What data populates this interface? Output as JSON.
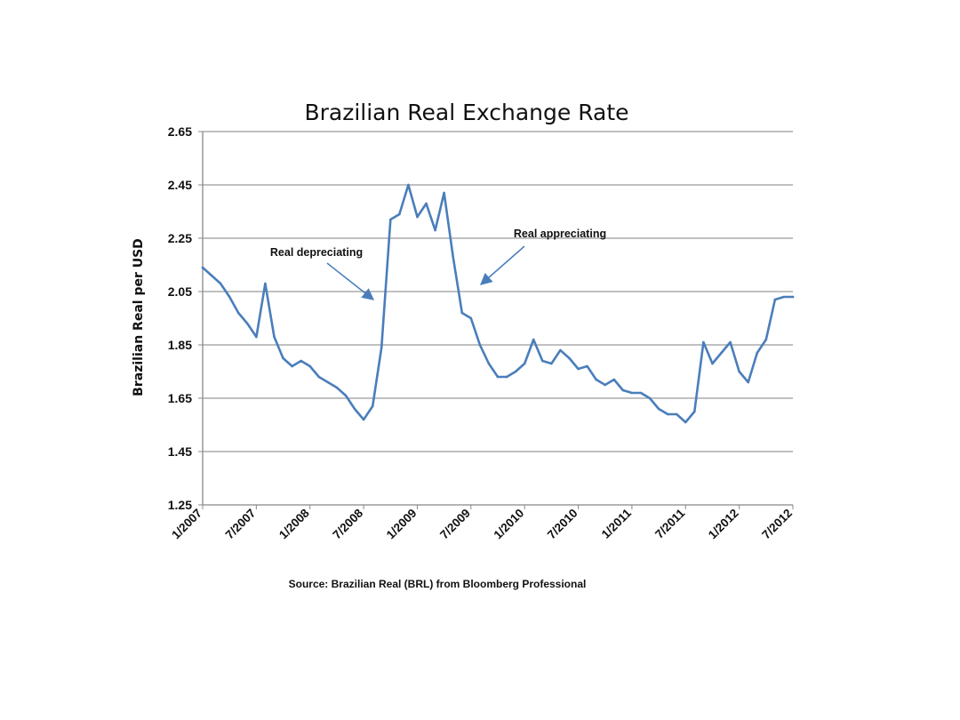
{
  "chart_data": {
    "type": "line",
    "title": "Brazilian Real Exchange Rate",
    "ylabel": "Brazilian Real per USD",
    "xlabel": "",
    "ylim": [
      1.25,
      2.65
    ],
    "yticks": [
      "1.25",
      "1.45",
      "1.65",
      "1.85",
      "2.05",
      "2.25",
      "2.45",
      "2.65"
    ],
    "xlim": [
      "2007-01",
      "2012-07"
    ],
    "xticks": [
      "1/2007",
      "7/2007",
      "1/2008",
      "7/2008",
      "1/2009",
      "7/2009",
      "1/2010",
      "7/2010",
      "1/2011",
      "7/2011",
      "1/2012",
      "7/2012"
    ],
    "grid": true,
    "line_color": "#4a7ebb",
    "series": [
      {
        "x": [
          "2007-01",
          "2007-02",
          "2007-03",
          "2007-04",
          "2007-05",
          "2007-06",
          "2007-07",
          "2007-08",
          "2007-09",
          "2007-10",
          "2007-11",
          "2007-12",
          "2008-01",
          "2008-02",
          "2008-03",
          "2008-04",
          "2008-05",
          "2008-06",
          "2008-07",
          "2008-08",
          "2008-09",
          "2008-10",
          "2008-11",
          "2008-12",
          "2009-01",
          "2009-02",
          "2009-03",
          "2009-04",
          "2009-05",
          "2009-06",
          "2009-07",
          "2009-08",
          "2009-09",
          "2009-10",
          "2009-11",
          "2009-12",
          "2010-01",
          "2010-02",
          "2010-03",
          "2010-04",
          "2010-05",
          "2010-06",
          "2010-07",
          "2010-08",
          "2010-09",
          "2010-10",
          "2010-11",
          "2010-12",
          "2011-01",
          "2011-02",
          "2011-03",
          "2011-04",
          "2011-05",
          "2011-06",
          "2011-07",
          "2011-08",
          "2011-09",
          "2011-10",
          "2011-11",
          "2011-12",
          "2012-01",
          "2012-02",
          "2012-03",
          "2012-04",
          "2012-05",
          "2012-06",
          "2012-07"
        ],
        "values": [
          2.14,
          2.11,
          2.08,
          2.03,
          1.97,
          1.93,
          1.88,
          2.08,
          1.88,
          1.8,
          1.77,
          1.79,
          1.77,
          1.73,
          1.71,
          1.69,
          1.66,
          1.61,
          1.57,
          1.62,
          1.84,
          2.32,
          2.34,
          2.45,
          2.33,
          2.38,
          2.28,
          2.42,
          2.18,
          1.97,
          1.95,
          1.85,
          1.78,
          1.73,
          1.73,
          1.75,
          1.78,
          1.87,
          1.79,
          1.78,
          1.83,
          1.8,
          1.76,
          1.77,
          1.72,
          1.7,
          1.72,
          1.68,
          1.67,
          1.67,
          1.65,
          1.61,
          1.59,
          1.59,
          1.56,
          1.6,
          1.86,
          1.78,
          1.82,
          1.86,
          1.75,
          1.71,
          1.82,
          1.87,
          2.02,
          2.03,
          2.03
        ]
      }
    ],
    "annotations": [
      {
        "text": "Real depreciating",
        "target_x": "2008-10",
        "target_y": 2.03
      },
      {
        "text": "Real appreciating",
        "target_x": "2009-07",
        "target_y": 2.07
      }
    ],
    "source": "Source: Brazilian Real (BRL) from Bloomberg Professional"
  }
}
